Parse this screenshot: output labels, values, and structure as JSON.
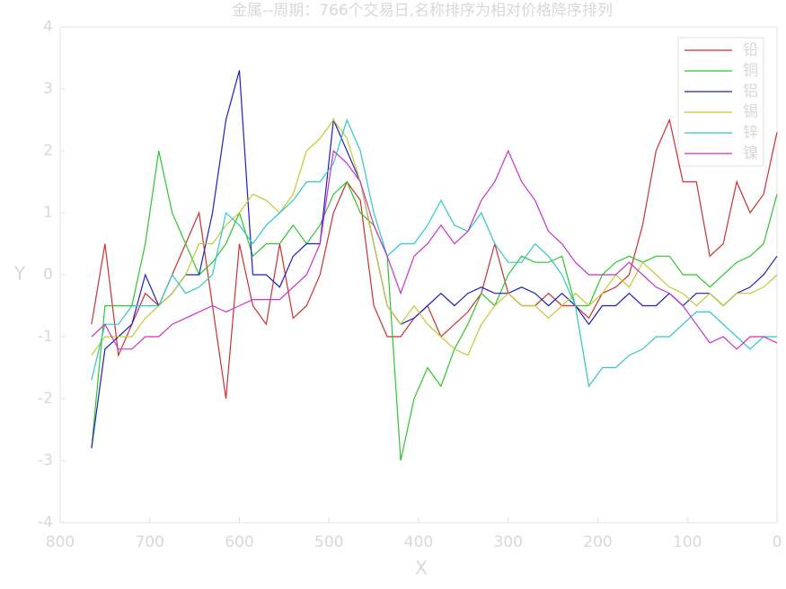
{
  "chart_data": {
    "type": "line",
    "title": "金属--周期：766个交易日,名称排序为相对价格降序排列",
    "x_label": "X",
    "y_label": "Y",
    "x": [
      765,
      750,
      735,
      720,
      705,
      690,
      675,
      660,
      645,
      630,
      615,
      600,
      585,
      570,
      555,
      540,
      525,
      510,
      495,
      480,
      465,
      450,
      435,
      420,
      405,
      390,
      375,
      360,
      345,
      330,
      315,
      300,
      285,
      270,
      255,
      240,
      225,
      210,
      195,
      180,
      165,
      150,
      135,
      120,
      105,
      90,
      75,
      60,
      45,
      30,
      15,
      0
    ],
    "xlim": [
      800,
      0
    ],
    "xticks": [
      800,
      700,
      600,
      500,
      400,
      300,
      200,
      100,
      0
    ],
    "ylim": [
      -4,
      4
    ],
    "yticks": [
      -4,
      -3,
      -2,
      -1,
      0,
      1,
      2,
      3,
      4
    ],
    "legend": "upper right",
    "series": [
      {
        "name": "铅",
        "color": "#c83232",
        "values": [
          -0.8,
          0.5,
          -1.3,
          -0.8,
          -0.3,
          -0.5,
          0,
          0.5,
          1.0,
          -0.5,
          -2.0,
          0.5,
          -0.5,
          -0.8,
          0.5,
          -0.7,
          -0.5,
          0,
          1.0,
          1.5,
          1.2,
          -0.5,
          -1.0,
          -1.0,
          -0.7,
          -0.5,
          -1.0,
          -0.8,
          -0.6,
          -0.3,
          0.5,
          -0.3,
          -0.5,
          -0.5,
          -0.3,
          -0.5,
          -0.5,
          -0.7,
          -0.3,
          -0.2,
          0,
          0.8,
          2.0,
          2.5,
          1.5,
          1.5,
          0.3,
          0.5,
          1.5,
          1.0,
          1.3,
          2.3
        ]
      },
      {
        "name": "铜",
        "color": "#2ec62e",
        "values": [
          -2.8,
          -0.5,
          -0.5,
          -0.5,
          0.5,
          2.0,
          1.0,
          0.5,
          0,
          0.2,
          0.5,
          1.0,
          0.3,
          0.5,
          0.5,
          0.8,
          0.5,
          0.8,
          1.3,
          1.5,
          1.0,
          0.8,
          0.3,
          -3.0,
          -2.0,
          -1.5,
          -1.8,
          -1.2,
          -0.8,
          -0.3,
          -0.5,
          0,
          0.3,
          0.2,
          0.2,
          0.3,
          -0.5,
          -0.5,
          0,
          0.2,
          0.3,
          0.2,
          0.3,
          0.3,
          0,
          0,
          -0.2,
          0,
          0.2,
          0.3,
          0.5,
          1.3
        ]
      },
      {
        "name": "铝",
        "color": "#1f1fbf",
        "values": [
          -2.8,
          -1.2,
          -1.0,
          -0.8,
          0,
          -0.5,
          -0.3,
          0,
          0,
          1.0,
          2.5,
          3.3,
          0,
          0,
          -0.2,
          0.3,
          0.5,
          0.5,
          2.5,
          2.0,
          1.5,
          0.5,
          -0.5,
          -0.8,
          -0.7,
          -0.5,
          -0.3,
          -0.5,
          -0.3,
          -0.2,
          -0.3,
          -0.3,
          -0.2,
          -0.3,
          -0.5,
          -0.3,
          -0.5,
          -0.8,
          -0.5,
          -0.5,
          -0.3,
          -0.5,
          -0.5,
          -0.3,
          -0.5,
          -0.3,
          -0.3,
          -0.5,
          -0.3,
          -0.2,
          0,
          0.3
        ]
      },
      {
        "name": "锡",
        "color": "#c8c832",
        "values": [
          -1.3,
          -1.0,
          -1.0,
          -1.0,
          -0.7,
          -0.5,
          -0.3,
          0,
          0.5,
          0.5,
          0.8,
          1.0,
          1.3,
          1.2,
          1.0,
          1.3,
          2.0,
          2.2,
          2.5,
          2.2,
          1.5,
          0.5,
          -0.5,
          -0.8,
          -0.5,
          -0.8,
          -1.0,
          -1.2,
          -1.3,
          -0.8,
          -0.5,
          -0.3,
          -0.5,
          -0.5,
          -0.7,
          -0.5,
          -0.3,
          -0.5,
          -0.3,
          0,
          -0.2,
          0.2,
          0,
          -0.2,
          -0.3,
          -0.5,
          -0.3,
          -0.5,
          -0.3,
          -0.3,
          -0.2,
          0
        ]
      },
      {
        "name": "锌",
        "color": "#2ec8c8",
        "values": [
          -1.7,
          -0.8,
          -0.8,
          -0.5,
          -0.5,
          -0.5,
          0,
          -0.3,
          -0.2,
          0,
          1.0,
          0.8,
          0.5,
          0.8,
          1.0,
          1.2,
          1.5,
          1.5,
          1.8,
          2.5,
          2.0,
          1.0,
          0.3,
          0.5,
          0.5,
          0.8,
          1.2,
          0.8,
          0.7,
          1.0,
          0.5,
          0.2,
          0.2,
          0.5,
          0.3,
          0,
          -0.5,
          -1.8,
          -1.5,
          -1.5,
          -1.3,
          -1.2,
          -1.0,
          -1.0,
          -0.8,
          -0.6,
          -0.6,
          -0.8,
          -1.0,
          -1.2,
          -1.0,
          -1.0
        ]
      },
      {
        "name": "镍",
        "color": "#c832c8",
        "values": [
          -1.0,
          -0.8,
          -1.2,
          -1.2,
          -1.0,
          -1.0,
          -0.8,
          -0.7,
          -0.6,
          -0.5,
          -0.6,
          -0.5,
          -0.4,
          -0.4,
          -0.4,
          -0.2,
          0,
          0.5,
          2.0,
          1.8,
          1.5,
          0.8,
          0.3,
          -0.3,
          0.3,
          0.5,
          0.8,
          0.5,
          0.7,
          1.2,
          1.5,
          2.0,
          1.5,
          1.2,
          0.7,
          0.5,
          0.2,
          0,
          0,
          0,
          0.2,
          0,
          -0.2,
          -0.3,
          -0.5,
          -0.8,
          -1.1,
          -1.0,
          -1.2,
          -1.0,
          -1.0,
          -1.1
        ]
      }
    ]
  }
}
